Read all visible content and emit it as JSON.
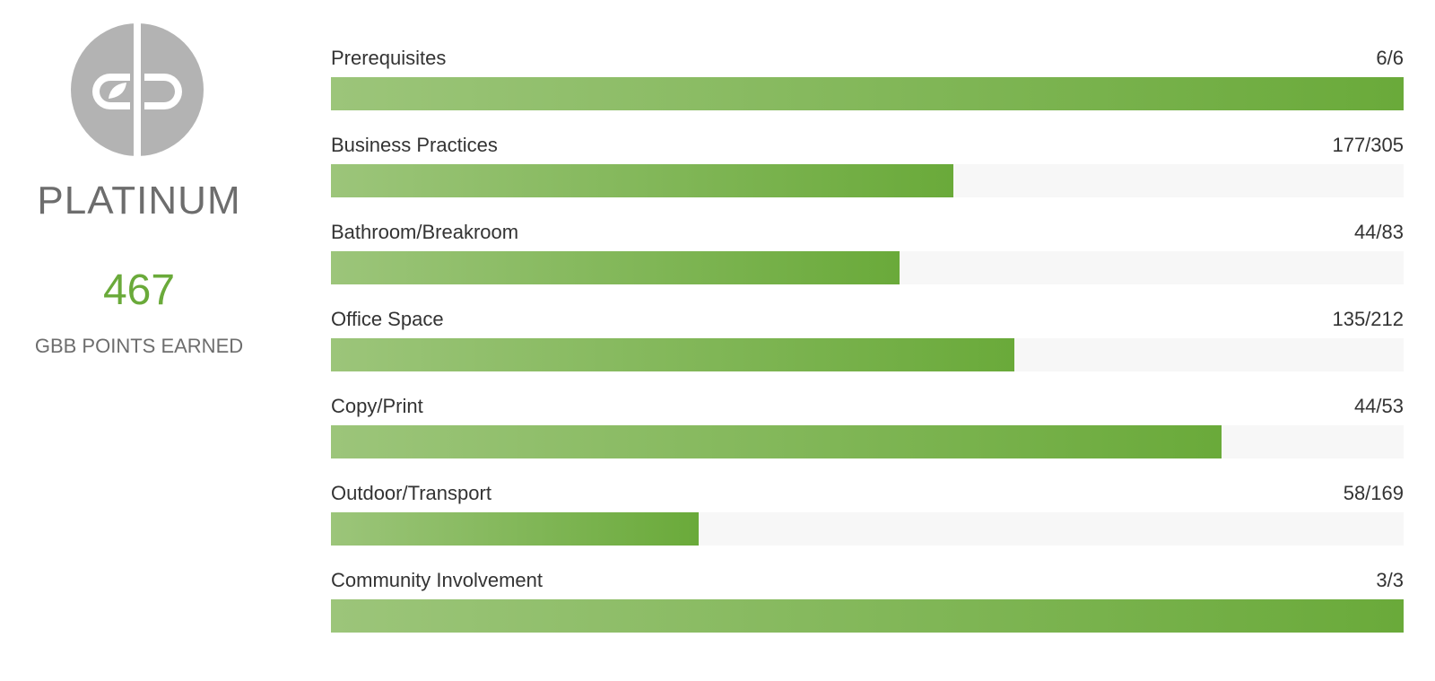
{
  "summary": {
    "logo_icon": "gbb-leaf-logo-icon",
    "level": "PLATINUM",
    "points": "467",
    "points_label": "GBB POINTS EARNED"
  },
  "colors": {
    "accent": "#6aaa3a",
    "bar_start": "#9cc57a",
    "bar_end": "#6aaa3a",
    "track": "#f7f7f7",
    "muted_text": "#6d6d6d"
  },
  "categories": [
    {
      "name": "Prerequisites",
      "score": "6/6",
      "earned": 6,
      "possible": 6
    },
    {
      "name": "Business Practices",
      "score": "177/305",
      "earned": 177,
      "possible": 305
    },
    {
      "name": "Bathroom/Breakroom",
      "score": "44/83",
      "earned": 44,
      "possible": 83
    },
    {
      "name": "Office Space",
      "score": "135/212",
      "earned": 135,
      "possible": 212
    },
    {
      "name": "Copy/Print",
      "score": "44/53",
      "earned": 44,
      "possible": 53
    },
    {
      "name": "Outdoor/Transport",
      "score": "58/169",
      "earned": 58,
      "possible": 169
    },
    {
      "name": "Community Involvement",
      "score": "3/3",
      "earned": 3,
      "possible": 3
    }
  ]
}
